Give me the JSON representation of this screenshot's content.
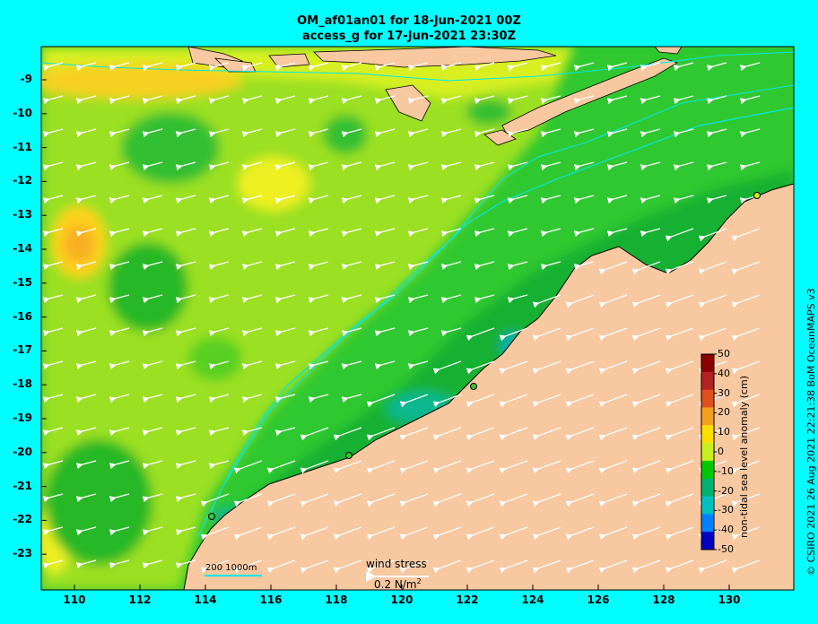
{
  "header": {
    "line1": "OM_af01an01 for 18-Jun-2021 00Z",
    "line2": "access_g for 17-Jun-2021 23:30Z"
  },
  "lat_labels": [
    "-9",
    "-10",
    "-11",
    "-12",
    "-13",
    "-14",
    "-15",
    "-16",
    "-17",
    "-18",
    "-19",
    "-20",
    "-21",
    "-22",
    "-23"
  ],
  "lon_labels": [
    "110",
    "112",
    "114",
    "116",
    "118",
    "120",
    "122",
    "124",
    "126",
    "128",
    "130"
  ],
  "colorbar": {
    "title": "non-tidal sea level anomaly (cm)",
    "ticks": [
      "50",
      "40",
      "30",
      "20",
      "10",
      "0",
      "-10",
      "-20",
      "-30",
      "-40",
      "-50"
    ],
    "colors": [
      "#8b0000",
      "#b22222",
      "#e0501a",
      "#f4a020",
      "#ffdd00",
      "#c8f020",
      "#00c800",
      "#00b070",
      "#00c0c0",
      "#0080ff",
      "#0000c0"
    ]
  },
  "scale_bar": {
    "label": "200  1000m"
  },
  "wind": {
    "label": "wind stress",
    "ref": "0.2 N/m",
    "ref_sup": "2"
  },
  "credit": "© CSIRO 2021  26 Aug 2021 22:21:38 BoM OceanMAPS v3",
  "colors": {
    "land": "#f8c8a0",
    "background": "#00ffff",
    "ocean_base": "#2ec82e"
  }
}
